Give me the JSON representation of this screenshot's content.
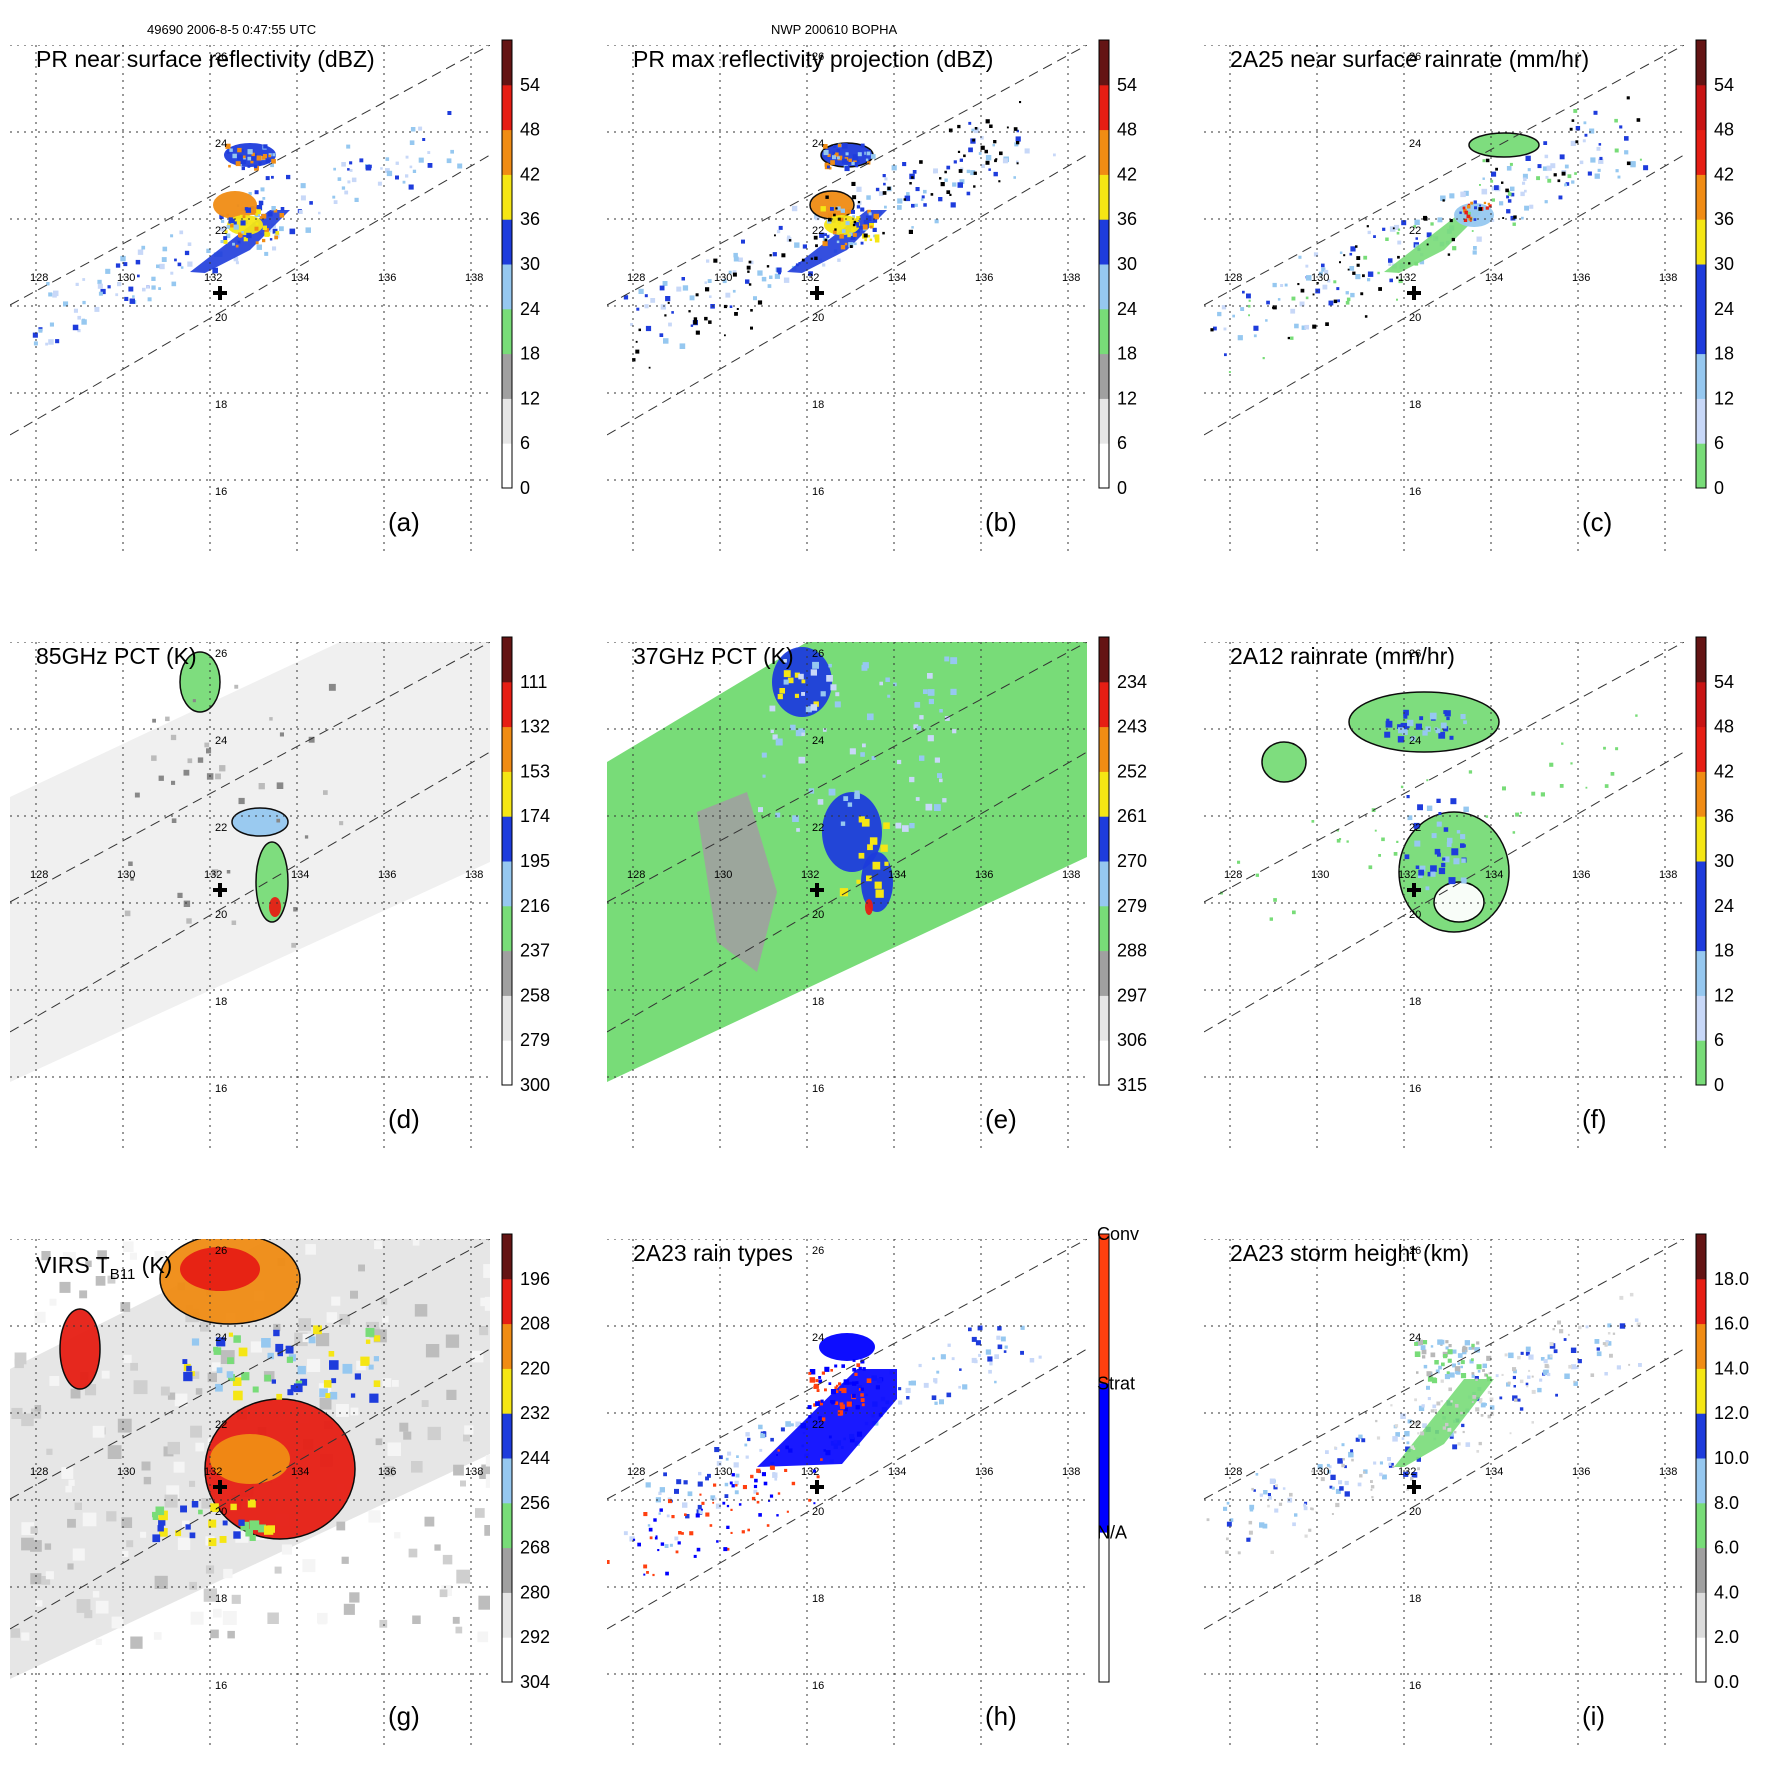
{
  "header": {
    "left": "49690 2006-8-5 0:47:55 UTC",
    "right": "NWP 200610 BOPHA"
  },
  "grid": {
    "lon_labels": [
      "128",
      "130",
      "132",
      "134",
      "136",
      "138"
    ],
    "lat_labels": [
      "26",
      "24",
      "22",
      "20",
      "18",
      "16"
    ]
  },
  "colors": {
    "green": "#78dc78",
    "lightblue": "#96c8f0",
    "blue": "#1e3cdc",
    "yellow": "#f5e614",
    "orange": "#f08c14",
    "red": "#e61e14",
    "darkred": "#641414",
    "gray": "#a0a0a0",
    "ocean_light": "#f0f0f0"
  },
  "chart_data": [
    {
      "id": "a",
      "type": "heatmap",
      "label": "(a)",
      "title": "PR near surface reflectivity (dBZ)",
      "colorbar": {
        "ticks": [
          "0",
          "6",
          "12",
          "18",
          "24",
          "30",
          "36",
          "42",
          "48",
          "54"
        ],
        "bands": [
          "#ffffff",
          "#e6e6e6",
          "#a0a0a0",
          "#78dc78",
          "#96c8f0",
          "#1e3cdc",
          "#f5e614",
          "#f08c14",
          "#e61e14",
          "#641414"
        ]
      },
      "swath": "pr"
    },
    {
      "id": "b",
      "type": "heatmap",
      "label": "(b)",
      "title": "PR max reflectivity projection (dBZ)",
      "colorbar": {
        "ticks": [
          "0",
          "6",
          "12",
          "18",
          "24",
          "30",
          "36",
          "42",
          "48",
          "54"
        ],
        "bands": [
          "#ffffff",
          "#e6e6e6",
          "#a0a0a0",
          "#78dc78",
          "#96c8f0",
          "#1e3cdc",
          "#f5e614",
          "#f08c14",
          "#e61e14",
          "#641414"
        ]
      },
      "swath": "pr"
    },
    {
      "id": "c",
      "type": "heatmap",
      "label": "(c)",
      "title": "2A25 near surface rainrate (mm/hr)",
      "colorbar": {
        "ticks": [
          "0",
          "6",
          "12",
          "18",
          "24",
          "30",
          "36",
          "42",
          "48",
          "54"
        ],
        "bands": [
          "#78dc78",
          "#c8d8f8",
          "#96c8f0",
          "#1e3cdc",
          "#1e3cdc",
          "#f5e614",
          "#f08c14",
          "#e61e14",
          "#c81414",
          "#641414"
        ]
      },
      "swath": "pr"
    },
    {
      "id": "d",
      "type": "heatmap",
      "label": "(d)",
      "title": "85GHz PCT (K)",
      "colorbar": {
        "ticks": [
          "300",
          "279",
          "258",
          "237",
          "216",
          "195",
          "174",
          "153",
          "132",
          "111"
        ],
        "bands": [
          "#ffffff",
          "#e6e6e6",
          "#a0a0a0",
          "#78dc78",
          "#96c8f0",
          "#1e3cdc",
          "#f5e614",
          "#f08c14",
          "#e61e14",
          "#641414"
        ]
      },
      "swath": "tmi"
    },
    {
      "id": "e",
      "type": "heatmap",
      "label": "(e)",
      "title": "37GHz PCT (K)",
      "colorbar": {
        "ticks": [
          "315",
          "306",
          "297",
          "288",
          "279",
          "270",
          "261",
          "252",
          "243",
          "234"
        ],
        "bands": [
          "#ffffff",
          "#e6e6e6",
          "#a0a0a0",
          "#78dc78",
          "#96c8f0",
          "#1e3cdc",
          "#f5e614",
          "#f08c14",
          "#e61e14",
          "#641414"
        ]
      },
      "swath": "tmi"
    },
    {
      "id": "f",
      "type": "heatmap",
      "label": "(f)",
      "title": "2A12 rainrate (mm/hr)",
      "colorbar": {
        "ticks": [
          "0",
          "6",
          "12",
          "18",
          "24",
          "30",
          "36",
          "42",
          "48",
          "54"
        ],
        "bands": [
          "#78dc78",
          "#c8d8f8",
          "#96c8f0",
          "#1e3cdc",
          "#1e3cdc",
          "#f5e614",
          "#f08c14",
          "#e61e14",
          "#c81414",
          "#641414"
        ]
      },
      "swath": "pr"
    },
    {
      "id": "g",
      "type": "heatmap",
      "label": "(g)",
      "title_main": "VIRS T",
      "title_sub": "B11",
      "title_unit": " (K)",
      "colorbar": {
        "ticks": [
          "304",
          "292",
          "280",
          "268",
          "256",
          "244",
          "232",
          "220",
          "208",
          "196"
        ],
        "bands": [
          "#ffffff",
          "#e6e6e6",
          "#a0a0a0",
          "#78dc78",
          "#96c8f0",
          "#1e3cdc",
          "#f5e614",
          "#f08c14",
          "#e61e14",
          "#641414"
        ]
      },
      "swath": "virs"
    },
    {
      "id": "h",
      "type": "heatmap",
      "label": "(h)",
      "title": "2A23 rain types",
      "colorbar": {
        "ticks": [
          "N/A",
          "Strat",
          "Conv"
        ],
        "bands": [
          "#ffffff",
          "#0000ff",
          "#ff4010"
        ]
      },
      "swath": "pr"
    },
    {
      "id": "i",
      "type": "heatmap",
      "label": "(i)",
      "title": "2A23 storm height (km)",
      "colorbar": {
        "ticks": [
          "0.0",
          "2.0",
          "4.0",
          "6.0",
          "8.0",
          "10.0",
          "12.0",
          "14.0",
          "16.0",
          "18.0"
        ],
        "bands": [
          "#ffffff",
          "#dcdcdc",
          "#a0a0a0",
          "#78dc78",
          "#96c8f0",
          "#1e3cdc",
          "#f5e614",
          "#f08c14",
          "#e61e14",
          "#641414"
        ]
      },
      "swath": "pr"
    }
  ]
}
